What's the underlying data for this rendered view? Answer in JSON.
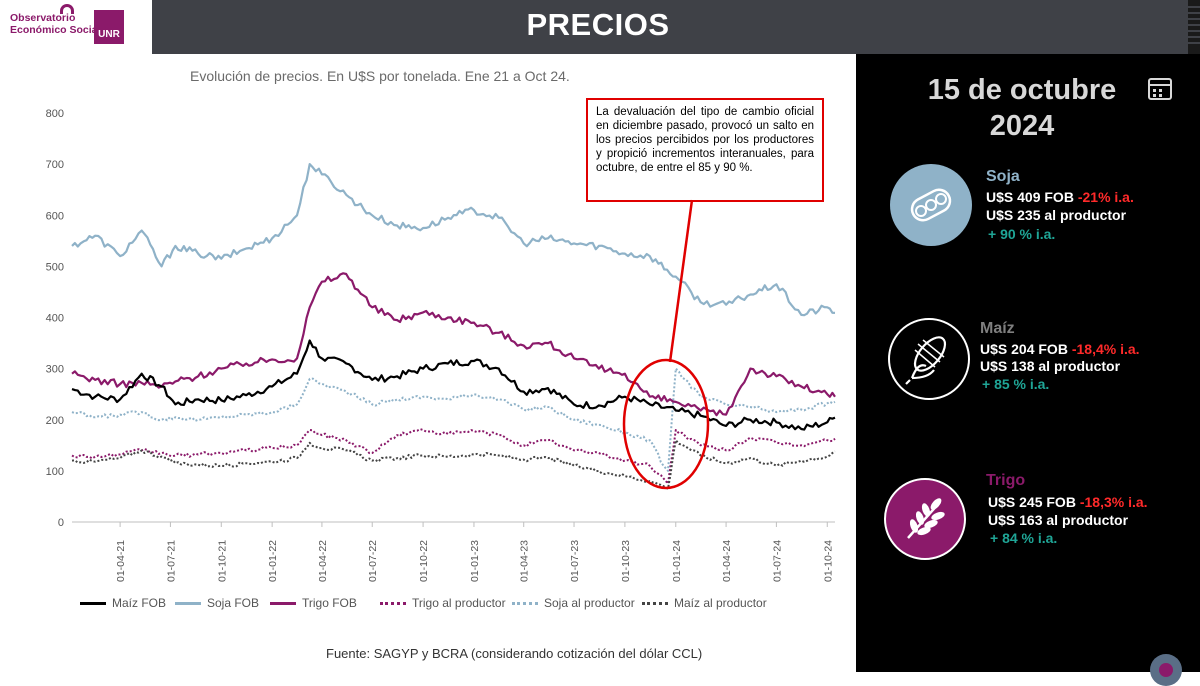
{
  "header": {
    "title": "PRECIOS",
    "logo_line1": "Observatorio",
    "logo_line2": "Económico Social",
    "logo_unr": "UNR"
  },
  "chart_title": "Evolución de precios. En U$S por tonelada. Ene 21 a Oct 24.",
  "annotation": "La devaluación del tipo de cambio oficial en diciembre pasado, provocó un salto en los precios percibidos por los productores y propició incrementos interanuales, para octubre, de entre el 85 y 90 %.",
  "source": "Fuente: SAGYP y BCRA (considerando cotización del dólar CCL)",
  "panel": {
    "date_line1": "15 de octubre",
    "date_line2": "2024",
    "crops": [
      {
        "name": "Soja",
        "fob_price": "U$S 409 FOB",
        "fob_change": "-21%  i.a.",
        "producer": "U$S 235 al productor",
        "yoy": "+ 90 %  i.a.",
        "color": "#8fb2c8",
        "icon": "soybean-icon"
      },
      {
        "name": "Maíz",
        "fob_price": "U$S 204 FOB",
        "fob_change": "-18,4%  i.a.",
        "producer": "U$S 138 al productor",
        "yoy": "+ 85 %  i.a.",
        "color": "#7f7f7f",
        "icon": "corn-icon"
      },
      {
        "name": "Trigo",
        "fob_price": "U$S 245 FOB",
        "fob_change": "-18,3% i.a.",
        "producer": "U$S 163 al productor",
        "yoy": "+ 84 % i.a.",
        "color": "#8b1a6a",
        "icon": "wheat-icon"
      }
    ]
  },
  "chart_data": {
    "type": "line",
    "title": "Evolución de precios. En U$S por tonelada. Ene 21 a Oct 24.",
    "ylim": [
      0,
      800
    ],
    "yticks": [
      0,
      100,
      200,
      300,
      400,
      500,
      600,
      700,
      800
    ],
    "xlim": [
      "2021-01-04",
      "2024-10-15"
    ],
    "xtick_labels": [
      "01-04-21",
      "01-07-21",
      "01-10-21",
      "01-01-22",
      "01-04-22",
      "01-07-22",
      "01-10-22",
      "01-01-23",
      "01-04-23",
      "01-07-23",
      "01-10-23",
      "01-01-24",
      "01-04-24",
      "01-07-24",
      "01-10-24"
    ],
    "xtick_dates": [
      "2021-04-01",
      "2021-07-01",
      "2021-10-01",
      "2022-01-01",
      "2022-04-01",
      "2022-07-01",
      "2022-10-01",
      "2023-01-01",
      "2023-04-01",
      "2023-07-01",
      "2023-10-01",
      "2024-01-01",
      "2024-04-01",
      "2024-07-01",
      "2024-10-01"
    ],
    "legend_position": "bottom",
    "series": [
      {
        "name": "Maíz FOB",
        "color": "#000000",
        "style": "solid",
        "x": [
          "2021-01-04",
          "2021-02-15",
          "2021-04-01",
          "2021-05-10",
          "2021-06-15",
          "2021-07-10",
          "2021-08-20",
          "2021-10-01",
          "2021-11-15",
          "2022-01-01",
          "2022-02-15",
          "2022-03-10",
          "2022-04-01",
          "2022-05-15",
          "2022-07-01",
          "2022-08-15",
          "2022-10-01",
          "2022-11-15",
          "2023-01-01",
          "2023-02-15",
          "2023-04-01",
          "2023-05-15",
          "2023-07-01",
          "2023-08-15",
          "2023-10-01",
          "2023-11-15",
          "2024-01-01",
          "2024-02-15",
          "2024-04-01",
          "2024-05-15",
          "2024-07-01",
          "2024-08-15",
          "2024-10-01",
          "2024-10-15"
        ],
        "y": [
          260,
          245,
          240,
          290,
          265,
          230,
          240,
          238,
          248,
          265,
          290,
          355,
          320,
          310,
          278,
          285,
          300,
          310,
          315,
          300,
          255,
          262,
          230,
          228,
          245,
          230,
          218,
          208,
          188,
          200,
          195,
          182,
          195,
          204
        ]
      },
      {
        "name": "Soja FOB",
        "color": "#8fb2c8",
        "style": "solid",
        "x": [
          "2021-01-04",
          "2021-02-15",
          "2021-04-01",
          "2021-05-10",
          "2021-06-15",
          "2021-07-10",
          "2021-08-20",
          "2021-10-01",
          "2021-11-15",
          "2022-01-01",
          "2022-02-15",
          "2022-03-10",
          "2022-04-01",
          "2022-05-15",
          "2022-07-01",
          "2022-08-15",
          "2022-10-01",
          "2022-11-15",
          "2023-01-01",
          "2023-02-15",
          "2023-04-01",
          "2023-05-15",
          "2023-07-01",
          "2023-08-15",
          "2023-10-01",
          "2023-11-15",
          "2024-01-01",
          "2024-02-15",
          "2024-04-01",
          "2024-05-15",
          "2024-07-01",
          "2024-08-15",
          "2024-10-01",
          "2024-10-15"
        ],
        "y": [
          540,
          560,
          520,
          570,
          500,
          540,
          525,
          515,
          535,
          555,
          600,
          700,
          680,
          640,
          600,
          580,
          575,
          595,
          610,
          595,
          545,
          555,
          545,
          540,
          525,
          520,
          480,
          430,
          425,
          445,
          465,
          405,
          420,
          409
        ]
      },
      {
        "name": "Trigo FOB",
        "color": "#8b1a6a",
        "style": "solid",
        "x": [
          "2021-01-04",
          "2021-02-15",
          "2021-04-01",
          "2021-05-10",
          "2021-06-15",
          "2021-07-10",
          "2021-08-20",
          "2021-10-01",
          "2021-11-15",
          "2022-01-01",
          "2022-02-15",
          "2022-03-10",
          "2022-04-01",
          "2022-05-15",
          "2022-07-01",
          "2022-08-15",
          "2022-10-01",
          "2022-11-15",
          "2023-01-01",
          "2023-02-15",
          "2023-04-01",
          "2023-05-15",
          "2023-07-01",
          "2023-08-15",
          "2023-10-01",
          "2023-11-15",
          "2024-01-01",
          "2024-02-15",
          "2024-04-01",
          "2024-05-15",
          "2024-07-01",
          "2024-08-15",
          "2024-10-01",
          "2024-10-15"
        ],
        "y": [
          290,
          278,
          270,
          272,
          265,
          275,
          285,
          300,
          310,
          318,
          320,
          420,
          470,
          485,
          420,
          395,
          410,
          400,
          390,
          370,
          345,
          350,
          320,
          300,
          290,
          245,
          235,
          218,
          210,
          300,
          285,
          265,
          250,
          245
        ]
      },
      {
        "name": "Trigo al productor",
        "color": "#8b1a6a",
        "style": "dotted",
        "x": [
          "2021-01-04",
          "2021-02-15",
          "2021-04-01",
          "2021-05-10",
          "2021-06-15",
          "2021-07-10",
          "2021-08-20",
          "2021-10-01",
          "2021-11-15",
          "2022-01-01",
          "2022-02-15",
          "2022-03-10",
          "2022-04-01",
          "2022-05-15",
          "2022-07-01",
          "2022-08-15",
          "2022-10-01",
          "2022-11-15",
          "2023-01-01",
          "2023-02-15",
          "2023-04-01",
          "2023-05-15",
          "2023-07-01",
          "2023-08-15",
          "2023-10-01",
          "2023-11-15",
          "2023-12-10",
          "2023-12-18",
          "2024-01-01",
          "2024-02-15",
          "2024-04-01",
          "2024-05-15",
          "2024-07-01",
          "2024-08-15",
          "2024-10-01",
          "2024-10-15"
        ],
        "y": [
          130,
          128,
          132,
          140,
          135,
          130,
          132,
          135,
          140,
          145,
          150,
          180,
          170,
          160,
          135,
          170,
          180,
          172,
          178,
          170,
          150,
          160,
          140,
          135,
          120,
          110,
          85,
          75,
          180,
          150,
          140,
          165,
          155,
          150,
          160,
          163
        ]
      },
      {
        "name": "Soja al productor",
        "color": "#8fb2c8",
        "style": "dotted",
        "x": [
          "2021-01-04",
          "2021-02-15",
          "2021-04-01",
          "2021-05-10",
          "2021-06-15",
          "2021-07-10",
          "2021-08-20",
          "2021-10-01",
          "2021-11-15",
          "2022-01-01",
          "2022-02-15",
          "2022-03-10",
          "2022-04-01",
          "2022-05-15",
          "2022-07-01",
          "2022-08-15",
          "2022-10-01",
          "2022-11-15",
          "2023-01-01",
          "2023-02-15",
          "2023-04-01",
          "2023-05-15",
          "2023-07-01",
          "2023-08-15",
          "2023-10-01",
          "2023-11-15",
          "2023-12-10",
          "2023-12-18",
          "2024-01-01",
          "2024-02-15",
          "2024-04-01",
          "2024-05-15",
          "2024-07-01",
          "2024-08-15",
          "2024-10-01",
          "2024-10-15"
        ],
        "y": [
          215,
          205,
          210,
          215,
          200,
          205,
          200,
          205,
          210,
          215,
          230,
          280,
          270,
          255,
          230,
          240,
          245,
          240,
          250,
          240,
          220,
          225,
          200,
          190,
          175,
          160,
          110,
          100,
          300,
          245,
          230,
          225,
          215,
          220,
          232,
          235
        ]
      },
      {
        "name": "Maíz al productor",
        "color": "#444444",
        "style": "dotted",
        "x": [
          "2021-01-04",
          "2021-02-15",
          "2021-04-01",
          "2021-05-10",
          "2021-06-15",
          "2021-07-10",
          "2021-08-20",
          "2021-10-01",
          "2021-11-15",
          "2022-01-01",
          "2022-02-15",
          "2022-03-10",
          "2022-04-01",
          "2022-05-15",
          "2022-07-01",
          "2022-08-15",
          "2022-10-01",
          "2022-11-15",
          "2023-01-01",
          "2023-02-15",
          "2023-04-01",
          "2023-05-15",
          "2023-07-01",
          "2023-08-15",
          "2023-10-01",
          "2023-11-15",
          "2023-12-10",
          "2023-12-18",
          "2024-01-01",
          "2024-02-15",
          "2024-04-01",
          "2024-05-15",
          "2024-07-01",
          "2024-08-15",
          "2024-10-01",
          "2024-10-15"
        ],
        "y": [
          120,
          118,
          125,
          140,
          128,
          115,
          112,
          110,
          115,
          118,
          125,
          155,
          145,
          140,
          120,
          125,
          130,
          128,
          132,
          130,
          122,
          125,
          110,
          100,
          90,
          80,
          70,
          65,
          160,
          130,
          115,
          125,
          110,
          120,
          128,
          138
        ]
      }
    ]
  }
}
